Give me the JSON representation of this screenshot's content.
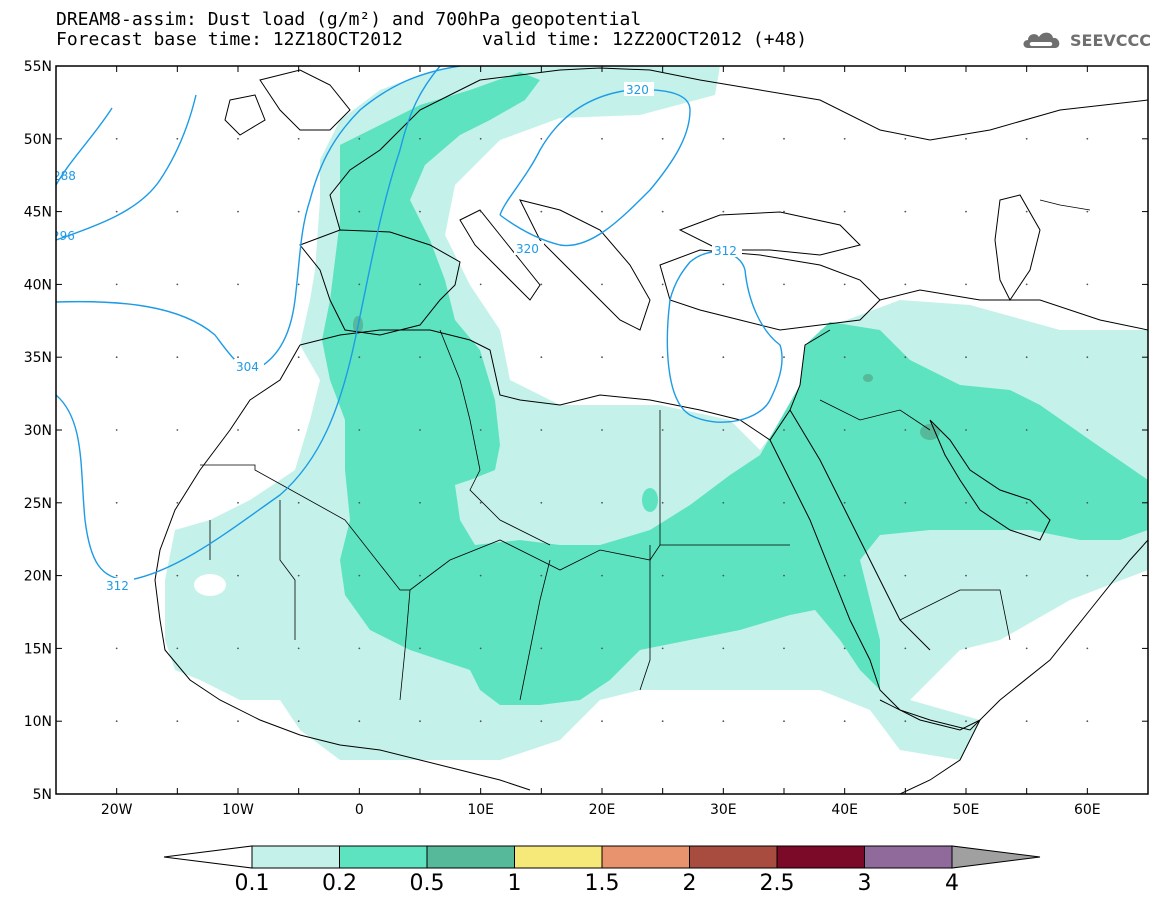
{
  "header": {
    "title_line1": "DREAM8-assim: Dust load (g/m²) and 700hPa geopotential",
    "title_line2": "Forecast base time: 12Z18OCT2012",
    "valid_time": "valid time: 12Z20OCT2012 (+48)",
    "logo_text": "SEEVCCC",
    "logo_icon": "cloud-logo-icon"
  },
  "map": {
    "lon_range": [
      -25,
      65
    ],
    "lat_range": [
      5,
      55
    ],
    "lat_labels": [
      "55N",
      "50N",
      "45N",
      "40N",
      "35N",
      "30N",
      "25N",
      "20N",
      "15N",
      "10N",
      "5N"
    ],
    "lon_labels": [
      "20W",
      "10W",
      "0",
      "10E",
      "20E",
      "30E",
      "40E",
      "50E",
      "60E"
    ],
    "contour_labels": [
      "288",
      "296",
      "304",
      "312",
      "320",
      "320",
      "312"
    ],
    "contour_color": "#1e9be6",
    "dust_colors": {
      "0.1-0.2": "#c4f2ea",
      "0.2-0.5": "#5ee3c0",
      "0.5-1": "#55b99a"
    }
  },
  "colorbar": {
    "labels": [
      "0.1",
      "0.2",
      "0.5",
      "1",
      "1.5",
      "2",
      "2.5",
      "3",
      "4"
    ],
    "colors": [
      "#c4f2ea",
      "#5ee3c0",
      "#55b99a",
      "#f7e87a",
      "#e9936e",
      "#a84c40",
      "#7a0a28",
      "#8f6a9a"
    ],
    "low_end_color": "#ffffff",
    "high_end_color": "#a0a0a0"
  }
}
